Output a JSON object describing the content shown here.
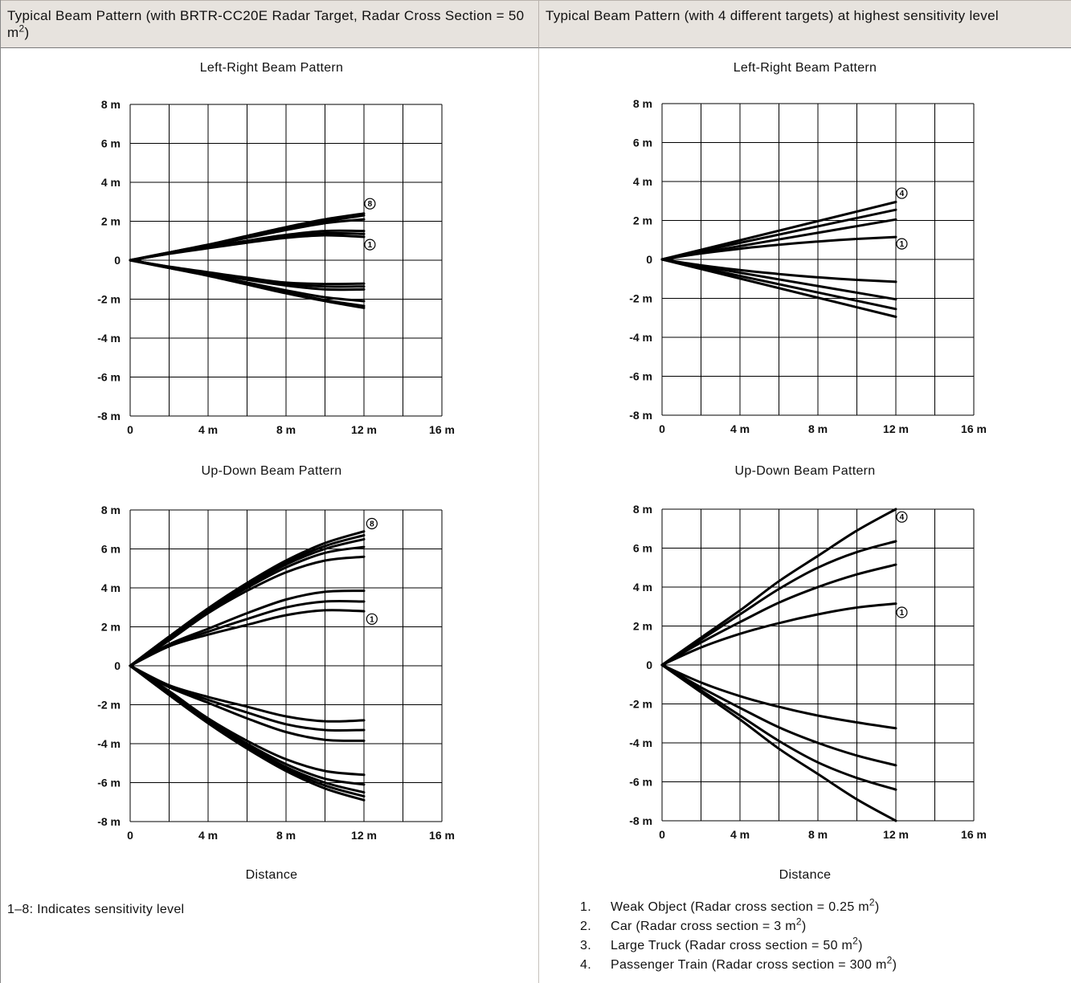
{
  "header": {
    "left_title": "Typical Beam Pattern (with BRTR-CC20E Radar Target, Radar Cross Section = 50 m",
    "left_title_sup": "2",
    "left_title_end": ")",
    "right_title": "Typical Beam Pattern (with 4 different targets) at highest sensitivity level"
  },
  "left_column": {
    "distance_label": "Distance",
    "note": "1–8: Indicates sensitivity level"
  },
  "right_column": {
    "distance_label": "Distance",
    "legend": [
      {
        "num": "1.",
        "text": "Weak Object (Radar cross section = 0.25 m",
        "sup": "2",
        "end": ")"
      },
      {
        "num": "2.",
        "text": "Car (Radar cross section = 3 m",
        "sup": "2",
        "end": ")"
      },
      {
        "num": "3.",
        "text": "Large Truck (Radar cross section = 50 m",
        "sup": "2",
        "end": ")"
      },
      {
        "num": "4.",
        "text": "Passenger Train (Radar cross section = 300 m",
        "sup": "2",
        "end": ")"
      }
    ]
  },
  "chart_data": [
    {
      "type": "line",
      "title": "Left-Right Beam Pattern",
      "x_ticks": [
        "0",
        "4 m",
        "8 m",
        "12 m",
        "16 m"
      ],
      "y_ticks": [
        "8 m",
        "6 m",
        "4 m",
        "2 m",
        "0",
        "-2 m",
        "-4 m",
        "-6 m",
        "-8 m"
      ],
      "xlim": [
        0,
        16
      ],
      "ylim": [
        -8,
        8
      ],
      "grid": true,
      "markers": [
        {
          "label": "8",
          "x": 12.1,
          "y": 2.9
        },
        {
          "label": "1",
          "x": 12.1,
          "y": 0.8
        }
      ],
      "series": [
        {
          "x": [
            0,
            2,
            4,
            6,
            8,
            10,
            12
          ],
          "y": [
            0,
            0.4,
            0.8,
            1.25,
            1.7,
            2.1,
            2.4
          ]
        },
        {
          "x": [
            0,
            2,
            4,
            6,
            8,
            10,
            12
          ],
          "y": [
            0,
            0.4,
            0.78,
            1.2,
            1.65,
            2.0,
            2.3
          ]
        },
        {
          "x": [
            0,
            2,
            4,
            6,
            8,
            10,
            12
          ],
          "y": [
            0,
            0.38,
            0.75,
            1.15,
            1.55,
            1.9,
            2.1
          ]
        },
        {
          "x": [
            0,
            2,
            4,
            6,
            8,
            10,
            12
          ],
          "y": [
            0,
            0.35,
            0.68,
            1.0,
            1.3,
            1.5,
            1.5
          ]
        },
        {
          "x": [
            0,
            2,
            4,
            6,
            8,
            10,
            12
          ],
          "y": [
            0,
            0.34,
            0.65,
            0.95,
            1.22,
            1.38,
            1.35
          ]
        },
        {
          "x": [
            0,
            2,
            4,
            6,
            8,
            10,
            12
          ],
          "y": [
            0,
            0.33,
            0.62,
            0.9,
            1.15,
            1.28,
            1.2
          ]
        },
        {
          "x": [
            0,
            2,
            4,
            6,
            8,
            10,
            12
          ],
          "y": [
            0,
            -0.4,
            -0.8,
            -1.25,
            -1.7,
            -2.1,
            -2.45
          ]
        },
        {
          "x": [
            0,
            2,
            4,
            6,
            8,
            10,
            12
          ],
          "y": [
            0,
            -0.4,
            -0.78,
            -1.2,
            -1.65,
            -2.05,
            -2.35
          ]
        },
        {
          "x": [
            0,
            2,
            4,
            6,
            8,
            10,
            12
          ],
          "y": [
            0,
            -0.38,
            -0.75,
            -1.15,
            -1.55,
            -1.9,
            -2.1
          ]
        },
        {
          "x": [
            0,
            2,
            4,
            6,
            8,
            10,
            12
          ],
          "y": [
            0,
            -0.35,
            -0.68,
            -1.0,
            -1.3,
            -1.5,
            -1.5
          ]
        },
        {
          "x": [
            0,
            2,
            4,
            6,
            8,
            10,
            12
          ],
          "y": [
            0,
            -0.34,
            -0.65,
            -0.95,
            -1.22,
            -1.35,
            -1.35
          ]
        },
        {
          "x": [
            0,
            2,
            4,
            6,
            8,
            10,
            12
          ],
          "y": [
            0,
            -0.33,
            -0.62,
            -0.9,
            -1.15,
            -1.22,
            -1.2
          ]
        }
      ]
    },
    {
      "type": "line",
      "title": "Up-Down Beam Pattern",
      "x_ticks": [
        "0",
        "4 m",
        "8 m",
        "12 m",
        "16 m"
      ],
      "y_ticks": [
        "8 m",
        "6 m",
        "4 m",
        "2 m",
        "0",
        "-2 m",
        "-4 m",
        "-6 m",
        "-8 m"
      ],
      "xlim": [
        0,
        16
      ],
      "ylim": [
        -8,
        8
      ],
      "grid": true,
      "markers": [
        {
          "label": "8",
          "x": 12.2,
          "y": 7.3
        },
        {
          "label": "1",
          "x": 12.2,
          "y": 2.4
        }
      ],
      "series": [
        {
          "x": [
            0,
            2,
            4,
            6,
            8,
            10,
            12
          ],
          "y": [
            0,
            1.5,
            2.95,
            4.25,
            5.4,
            6.3,
            6.9
          ]
        },
        {
          "x": [
            0,
            2,
            4,
            6,
            8,
            10,
            12
          ],
          "y": [
            0,
            1.45,
            2.9,
            4.2,
            5.3,
            6.15,
            6.7
          ]
        },
        {
          "x": [
            0,
            2,
            4,
            6,
            8,
            10,
            12
          ],
          "y": [
            0,
            1.4,
            2.85,
            4.1,
            5.2,
            6.0,
            6.5
          ]
        },
        {
          "x": [
            0,
            2,
            4,
            6,
            8,
            10,
            12
          ],
          "y": [
            0,
            1.35,
            2.8,
            4.0,
            5.05,
            5.8,
            6.1
          ]
        },
        {
          "x": [
            0,
            2,
            4,
            6,
            8,
            10,
            12
          ],
          "y": [
            0,
            1.3,
            2.7,
            3.85,
            4.8,
            5.4,
            5.6
          ]
        },
        {
          "x": [
            0,
            2,
            4,
            6,
            8,
            10,
            12
          ],
          "y": [
            0,
            1.1,
            1.9,
            2.7,
            3.4,
            3.8,
            3.85
          ]
        },
        {
          "x": [
            0,
            2,
            4,
            6,
            8,
            10,
            12
          ],
          "y": [
            0,
            1.05,
            1.75,
            2.4,
            3.0,
            3.3,
            3.3
          ]
        },
        {
          "x": [
            0,
            2,
            4,
            6,
            8,
            10,
            12
          ],
          "y": [
            0,
            1.0,
            1.6,
            2.1,
            2.6,
            2.85,
            2.8
          ]
        },
        {
          "x": [
            0,
            2,
            4,
            6,
            8,
            10,
            12
          ],
          "y": [
            0,
            -1.5,
            -2.95,
            -4.25,
            -5.4,
            -6.3,
            -6.9
          ]
        },
        {
          "x": [
            0,
            2,
            4,
            6,
            8,
            10,
            12
          ],
          "y": [
            0,
            -1.45,
            -2.9,
            -4.2,
            -5.3,
            -6.15,
            -6.7
          ]
        },
        {
          "x": [
            0,
            2,
            4,
            6,
            8,
            10,
            12
          ],
          "y": [
            0,
            -1.4,
            -2.85,
            -4.1,
            -5.2,
            -6.0,
            -6.5
          ]
        },
        {
          "x": [
            0,
            2,
            4,
            6,
            8,
            10,
            12
          ],
          "y": [
            0,
            -1.35,
            -2.8,
            -4.0,
            -5.05,
            -5.8,
            -6.1
          ]
        },
        {
          "x": [
            0,
            2,
            4,
            6,
            8,
            10,
            12
          ],
          "y": [
            0,
            -1.3,
            -2.7,
            -3.85,
            -4.8,
            -5.4,
            -5.6
          ]
        },
        {
          "x": [
            0,
            2,
            4,
            6,
            8,
            10,
            12
          ],
          "y": [
            0,
            -1.1,
            -1.9,
            -2.7,
            -3.4,
            -3.8,
            -3.85
          ]
        },
        {
          "x": [
            0,
            2,
            4,
            6,
            8,
            10,
            12
          ],
          "y": [
            0,
            -1.05,
            -1.75,
            -2.4,
            -3.0,
            -3.3,
            -3.3
          ]
        },
        {
          "x": [
            0,
            2,
            4,
            6,
            8,
            10,
            12
          ],
          "y": [
            0,
            -1.0,
            -1.6,
            -2.1,
            -2.6,
            -2.85,
            -2.8
          ]
        }
      ]
    },
    {
      "type": "line",
      "title": "Left-Right Beam Pattern",
      "x_ticks": [
        "0",
        "4 m",
        "8 m",
        "12 m",
        "16 m"
      ],
      "y_ticks": [
        "8 m",
        "6 m",
        "4 m",
        "2 m",
        "0",
        "-2 m",
        "-4 m",
        "-6 m",
        "-8 m"
      ],
      "xlim": [
        0,
        16
      ],
      "ylim": [
        -8,
        8
      ],
      "grid": true,
      "markers": [
        {
          "label": "4",
          "x": 12.1,
          "y": 3.4
        },
        {
          "label": "1",
          "x": 12.1,
          "y": 0.8
        }
      ],
      "series": [
        {
          "x": [
            0,
            12
          ],
          "y": [
            0,
            2.95
          ]
        },
        {
          "x": [
            0,
            12
          ],
          "y": [
            0,
            2.55
          ]
        },
        {
          "x": [
            0,
            12
          ],
          "y": [
            0,
            2.05
          ]
        },
        {
          "x": [
            0,
            2,
            4,
            6,
            8,
            10,
            12
          ],
          "y": [
            0,
            0.3,
            0.55,
            0.75,
            0.92,
            1.05,
            1.15
          ]
        },
        {
          "x": [
            0,
            12
          ],
          "y": [
            0,
            -2.95
          ]
        },
        {
          "x": [
            0,
            12
          ],
          "y": [
            0,
            -2.55
          ]
        },
        {
          "x": [
            0,
            12
          ],
          "y": [
            0,
            -2.05
          ]
        },
        {
          "x": [
            0,
            2,
            4,
            6,
            8,
            10,
            12
          ],
          "y": [
            0,
            -0.3,
            -0.55,
            -0.75,
            -0.92,
            -1.05,
            -1.15
          ]
        }
      ]
    },
    {
      "type": "line",
      "title": "Up-Down Beam Pattern",
      "x_ticks": [
        "0",
        "4 m",
        "8 m",
        "12 m",
        "16 m"
      ],
      "y_ticks": [
        "8 m",
        "6 m",
        "4 m",
        "2 m",
        "0",
        "-2 m",
        "-4 m",
        "-6 m",
        "-8 m"
      ],
      "xlim": [
        0,
        16
      ],
      "ylim": [
        -8,
        8
      ],
      "grid": true,
      "markers": [
        {
          "label": "4",
          "x": 12.1,
          "y": 7.6
        },
        {
          "label": "1",
          "x": 12.1,
          "y": 2.7
        }
      ],
      "series": [
        {
          "x": [
            0,
            2,
            4,
            6,
            8,
            10,
            12
          ],
          "y": [
            0,
            1.4,
            2.8,
            4.3,
            5.6,
            6.9,
            8.0
          ]
        },
        {
          "x": [
            0,
            2,
            4,
            6,
            8,
            10,
            12
          ],
          "y": [
            0,
            1.3,
            2.6,
            3.9,
            5.0,
            5.8,
            6.35
          ]
        },
        {
          "x": [
            0,
            2,
            4,
            6,
            8,
            10,
            12
          ],
          "y": [
            0,
            1.15,
            2.2,
            3.2,
            4.0,
            4.65,
            5.15
          ]
        },
        {
          "x": [
            0,
            2,
            4,
            6,
            8,
            10,
            12
          ],
          "y": [
            0,
            0.9,
            1.6,
            2.15,
            2.6,
            2.95,
            3.15
          ]
        },
        {
          "x": [
            0,
            2,
            4,
            6,
            8,
            10,
            12
          ],
          "y": [
            0,
            -1.4,
            -2.8,
            -4.3,
            -5.6,
            -6.9,
            -8.0
          ]
        },
        {
          "x": [
            0,
            2,
            4,
            6,
            8,
            10,
            12
          ],
          "y": [
            0,
            -1.3,
            -2.6,
            -3.9,
            -5.0,
            -5.8,
            -6.4
          ]
        },
        {
          "x": [
            0,
            2,
            4,
            6,
            8,
            10,
            12
          ],
          "y": [
            0,
            -1.15,
            -2.2,
            -3.2,
            -4.0,
            -4.65,
            -5.15
          ]
        },
        {
          "x": [
            0,
            2,
            4,
            6,
            8,
            10,
            12
          ],
          "y": [
            0,
            -0.9,
            -1.6,
            -2.15,
            -2.6,
            -2.95,
            -3.25
          ]
        }
      ]
    }
  ]
}
